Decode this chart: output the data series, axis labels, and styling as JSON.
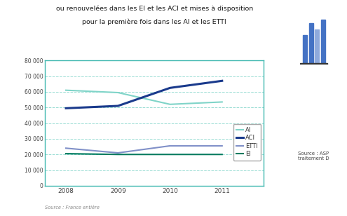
{
  "title_line1": "ou renouvelées dans les EI et les ACI et mises à disposition",
  "title_line2": "pour la première fois dans les AI et les ETTI",
  "years": [
    2008,
    2009,
    2010,
    2011
  ],
  "series": {
    "AI": {
      "values": [
        61000,
        59500,
        52000,
        53500
      ],
      "color": "#7fd4c8",
      "linewidth": 1.5,
      "linestyle": "-"
    },
    "ACI": {
      "values": [
        49500,
        51000,
        62500,
        67000
      ],
      "color": "#1a3a8c",
      "linewidth": 2.2,
      "linestyle": "-"
    },
    "ETTI": {
      "values": [
        24000,
        21000,
        25500,
        25500
      ],
      "color": "#8090c8",
      "linewidth": 1.5,
      "linestyle": "-"
    },
    "EI": {
      "values": [
        20500,
        20000,
        20000,
        20000
      ],
      "color": "#007a5e",
      "linewidth": 1.5,
      "linestyle": "-"
    }
  },
  "ylim": [
    0,
    80000
  ],
  "yticks": [
    0,
    10000,
    20000,
    30000,
    40000,
    50000,
    60000,
    70000,
    80000
  ],
  "ytick_labels": [
    "0",
    "10 000",
    "20 000",
    "30 000",
    "40 000",
    "50 000",
    "60 000",
    "70 000",
    "80 000"
  ],
  "grid_color": "#7fd4c8",
  "grid_linestyle": "--",
  "grid_alpha": 0.8,
  "axis_color": "#40b8b0",
  "background_color": "#ffffff",
  "plot_bg_color": "#ffffff",
  "source_text": "Source : ASP\ntraitement D",
  "footer_text": "Source : France entière",
  "legend_order": [
    "AI",
    "ACI",
    "ETTI",
    "EI"
  ]
}
